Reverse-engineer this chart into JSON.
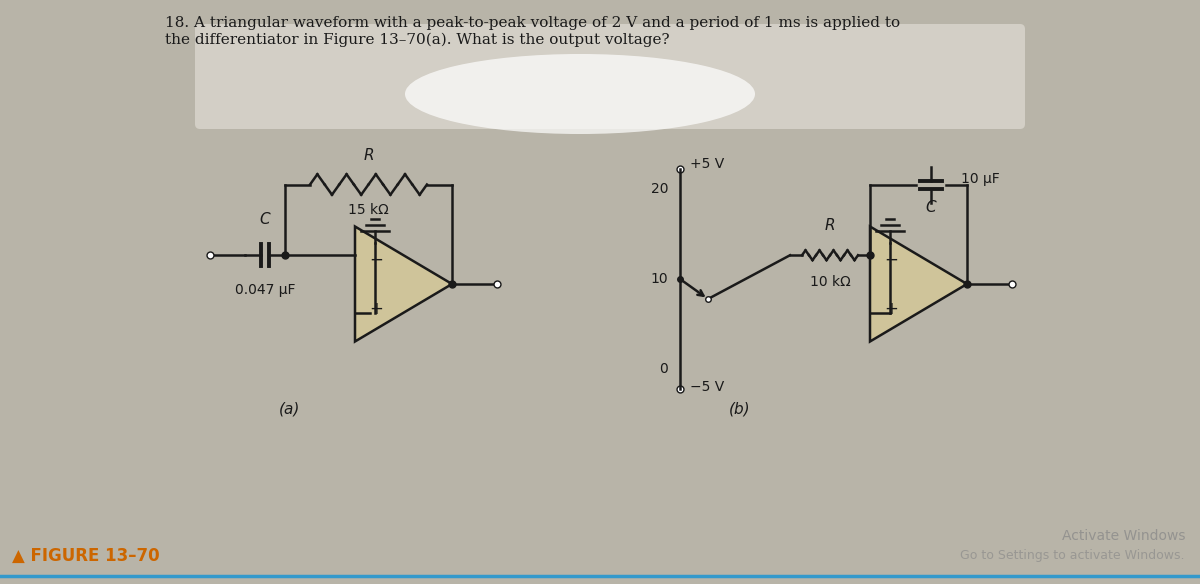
{
  "title_text": "18. A triangular waveform with a peak-to-peak voltage of 2 V and a period of 1 ms is applied to\nthe differentiator in Figure 13–70(a). What is the output voltage?",
  "figure_label": "▲ FIGURE 13–70",
  "label_a": "(a)",
  "label_b": "(b)",
  "bg_color": "#b8b4a8",
  "line_color": "#1a1a1a",
  "text_color": "#1a1a1a",
  "opamp_fill": "#cfc49a",
  "figure_label_color": "#cc6600",
  "activate_color": "#888888",
  "circuit_a": {
    "cap_label": "C",
    "cap_value": "0.047 μF",
    "res_label": "R",
    "res_value": "15 kΩ"
  },
  "circuit_b": {
    "cap_label": "C",
    "cap_value": "10 μF",
    "res_label": "R",
    "res_value": "10 kΩ",
    "vplus": "+5 V",
    "vminus": "−5 V",
    "pot_labels": [
      "20",
      "10",
      "0"
    ]
  }
}
